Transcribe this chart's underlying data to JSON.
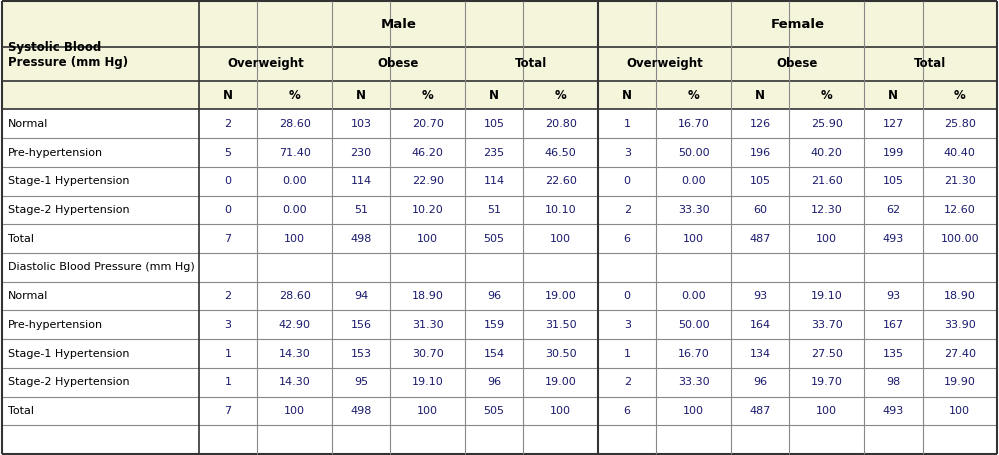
{
  "header_bg": "#f5f5dc",
  "cell_bg": "#ffffff",
  "border_color_outer": "#333333",
  "border_color_inner": "#888888",
  "text_color_data": "#1a1a6e",
  "text_color_header": "#000000",
  "col_widths_rel": [
    1.85,
    0.55,
    0.7,
    0.55,
    0.7,
    0.55,
    0.7,
    0.55,
    0.7,
    0.55,
    0.7,
    0.55,
    0.7
  ],
  "row_heights_rel": [
    1.45,
    1.05,
    0.9,
    0.9,
    0.9,
    0.9,
    0.9,
    0.9,
    0.9,
    0.9,
    0.9,
    0.9,
    0.9,
    0.9,
    0.9
  ],
  "level1_headers": [
    "",
    "Male",
    "",
    "",
    "",
    "",
    "",
    "Female",
    "",
    "",
    "",
    "",
    ""
  ],
  "level2_headers": [
    "Systolic Blood\nPressure (mm Hg)",
    "Overweight",
    "",
    "Obese",
    "",
    "Total",
    "",
    "Overweight",
    "",
    "Obese",
    "",
    "Total",
    ""
  ],
  "level3_headers": [
    "",
    "N",
    "%",
    "N",
    "%",
    "N",
    "%",
    "N",
    "%",
    "N",
    "%",
    "N",
    "%"
  ],
  "systolic_rows": [
    [
      "Normal",
      "2",
      "28.60",
      "103",
      "20.70",
      "105",
      "20.80",
      "1",
      "16.70",
      "126",
      "25.90",
      "127",
      "25.80"
    ],
    [
      "Pre-hypertension",
      "5",
      "71.40",
      "230",
      "46.20",
      "235",
      "46.50",
      "3",
      "50.00",
      "196",
      "40.20",
      "199",
      "40.40"
    ],
    [
      "Stage-1 Hypertension",
      "0",
      "0.00",
      "114",
      "22.90",
      "114",
      "22.60",
      "0",
      "0.00",
      "105",
      "21.60",
      "105",
      "21.30"
    ],
    [
      "Stage-2 Hypertension",
      "0",
      "0.00",
      "51",
      "10.20",
      "51",
      "10.10",
      "2",
      "33.30",
      "60",
      "12.30",
      "62",
      "12.60"
    ],
    [
      "Total",
      "7",
      "100",
      "498",
      "100",
      "505",
      "100",
      "6",
      "100",
      "487",
      "100",
      "493",
      "100.00"
    ]
  ],
  "diastolic_label": "Diastolic Blood Pressure (mm Hg)",
  "diastolic_rows": [
    [
      "Normal",
      "2",
      "28.60",
      "94",
      "18.90",
      "96",
      "19.00",
      "0",
      "0.00",
      "93",
      "19.10",
      "93",
      "18.90"
    ],
    [
      "Pre-hypertension",
      "3",
      "42.90",
      "156",
      "31.30",
      "159",
      "31.50",
      "3",
      "50.00",
      "164",
      "33.70",
      "167",
      "33.90"
    ],
    [
      "Stage-1 Hypertension",
      "1",
      "14.30",
      "153",
      "30.70",
      "154",
      "30.50",
      "1",
      "16.70",
      "134",
      "27.50",
      "135",
      "27.40"
    ],
    [
      "Stage-2 Hypertension",
      "1",
      "14.30",
      "95",
      "19.10",
      "96",
      "19.00",
      "2",
      "33.30",
      "96",
      "19.70",
      "98",
      "19.90"
    ],
    [
      "Total",
      "7",
      "100",
      "498",
      "100",
      "505",
      "100",
      "6",
      "100",
      "487",
      "100",
      "493",
      "100"
    ]
  ]
}
